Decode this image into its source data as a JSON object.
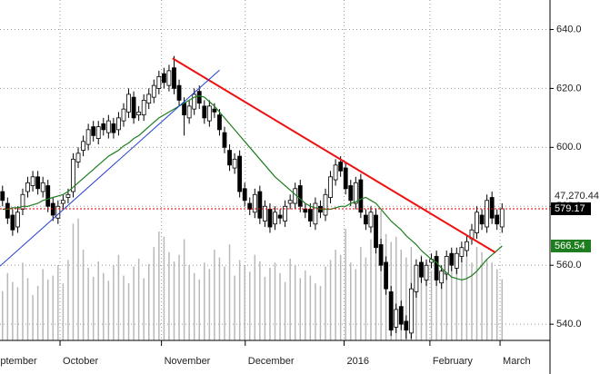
{
  "chart_data": {
    "type": "candlestick",
    "xlim": [
      -0.5,
      108.5
    ],
    "ylim": [
      534.5,
      650
    ],
    "grid": true,
    "yticks": [
      {
        "value": 540,
        "label": "540.0"
      },
      {
        "value": 560,
        "label": "560.0"
      },
      {
        "value": 580,
        "label": "580.0"
      },
      {
        "value": 600,
        "label": "600.0"
      },
      {
        "value": 620,
        "label": "620.0"
      },
      {
        "value": 640,
        "label": "640.0"
      }
    ],
    "xticks": [
      {
        "value": -3.4,
        "label": "September"
      },
      {
        "value": 11.4,
        "label": "October"
      },
      {
        "value": 31.5,
        "label": "November"
      },
      {
        "value": 48.1,
        "label": "December"
      },
      {
        "value": 67.7,
        "label": "2016"
      },
      {
        "value": 84.7,
        "label": "February"
      },
      {
        "value": 98.6,
        "label": "March"
      }
    ],
    "up_color": "#ffffff",
    "down_color": "#000000",
    "open": [
      585,
      581,
      577,
      573,
      579,
      585,
      587,
      590,
      585,
      587,
      581,
      576,
      581,
      583,
      585,
      595,
      599,
      601,
      607,
      603,
      608,
      605,
      608,
      606,
      609,
      612,
      617,
      611,
      611,
      615,
      617,
      620,
      625,
      621,
      627,
      621,
      615,
      610,
      613,
      619,
      614,
      609,
      613,
      611,
      605,
      599,
      593,
      597,
      586,
      581,
      578,
      585,
      575,
      579,
      574,
      577,
      575,
      581,
      581,
      587,
      579,
      579,
      574,
      580,
      577,
      583,
      589,
      595,
      593,
      587,
      581,
      589,
      577,
      573,
      577,
      567,
      561,
      551,
      539,
      546,
      541,
      537,
      551,
      561,
      555,
      561,
      563,
      554,
      557,
      564,
      559,
      563,
      565,
      569,
      571,
      577,
      573,
      583,
      577,
      573
    ],
    "high": [
      587,
      583,
      579,
      580,
      586,
      590,
      592,
      592,
      590,
      589,
      583,
      582,
      584,
      586,
      598,
      600,
      604,
      608,
      609,
      609,
      610,
      611,
      610,
      612,
      615,
      620,
      619,
      614,
      618,
      620,
      623,
      626,
      627,
      628,
      631,
      623,
      617,
      616,
      620,
      621,
      616,
      616,
      615,
      613,
      607,
      601,
      598,
      599,
      588,
      583,
      586,
      587,
      582,
      581,
      580,
      579,
      582,
      584,
      588,
      589,
      581,
      581,
      583,
      582,
      586,
      592,
      596,
      597,
      595,
      589,
      590,
      591,
      579,
      580,
      579,
      569,
      563,
      553,
      547,
      548,
      543,
      554,
      562,
      563,
      562,
      564,
      565,
      560,
      565,
      566,
      566,
      568,
      570,
      574,
      580,
      579,
      584,
      585,
      579,
      581
    ],
    "low": [
      580,
      574,
      570,
      571,
      577,
      583,
      585,
      584,
      583,
      578,
      575,
      574,
      579,
      581,
      583,
      593,
      597,
      599,
      602,
      601,
      604,
      603,
      603,
      604,
      607,
      610,
      608,
      609,
      609,
      613,
      615,
      618,
      620,
      619,
      618,
      614,
      604,
      608,
      611,
      613,
      608,
      607,
      610,
      604,
      598,
      592,
      591,
      583,
      580,
      577,
      576,
      574,
      573,
      571,
      572,
      574,
      573,
      579,
      579,
      578,
      576,
      573,
      572,
      576,
      575,
      581,
      587,
      590,
      584,
      580,
      579,
      576,
      572,
      571,
      564,
      558,
      550,
      536,
      537,
      538,
      535,
      535,
      549,
      554,
      553,
      559,
      553,
      552,
      555,
      558,
      557,
      561,
      563,
      567,
      569,
      572,
      571,
      574,
      572,
      571
    ],
    "close": [
      582,
      576,
      572,
      578,
      584,
      588,
      590,
      586,
      588,
      580,
      577,
      580,
      582,
      584,
      596,
      598,
      602,
      606,
      604,
      607,
      606,
      609,
      605,
      610,
      613,
      618,
      610,
      612,
      616,
      618,
      621,
      624,
      622,
      626,
      620,
      616,
      611,
      614,
      618,
      615,
      610,
      614,
      612,
      606,
      600,
      594,
      596,
      585,
      582,
      579,
      584,
      576,
      580,
      573,
      578,
      576,
      580,
      582,
      586,
      580,
      578,
      575,
      581,
      578,
      584,
      590,
      594,
      592,
      586,
      582,
      588,
      578,
      574,
      578,
      566,
      560,
      552,
      538,
      545,
      540,
      538,
      552,
      560,
      556,
      560,
      562,
      555,
      558,
      563,
      560,
      564,
      566,
      568,
      572,
      578,
      574,
      582,
      576,
      574,
      579.17
    ],
    "price_line_color": "#e00000",
    "ma": {
      "color": "#1e7d1e",
      "values": [
        579,
        579,
        579.5,
        579.5,
        580,
        580,
        580.5,
        581,
        582,
        582.5,
        583,
        583.5,
        584,
        585,
        586.5,
        588,
        589.5,
        591,
        592.5,
        594,
        595.5,
        597,
        598,
        599,
        600.5,
        601.5,
        603,
        604,
        605.5,
        607,
        608.5,
        610,
        611,
        612,
        613,
        614,
        615,
        616,
        617,
        617.5,
        617,
        615.5,
        614,
        612,
        610,
        608,
        606,
        604,
        602,
        600,
        598,
        596,
        594,
        592,
        590,
        588.5,
        587,
        585.5,
        584,
        582.5,
        581,
        580,
        579.5,
        579,
        579,
        579,
        579.5,
        580,
        580,
        581,
        581.5,
        582.5,
        583,
        582,
        581,
        579,
        577,
        575,
        573.5,
        572,
        570,
        568.5,
        567,
        565,
        563.5,
        562,
        561,
        559,
        557.5,
        556,
        555.5,
        555,
        555.5,
        556.5,
        558,
        560,
        562,
        563.5,
        565,
        566.54
      ]
    },
    "volume": {
      "color": "#b8b8b8",
      "values": [
        38000,
        52000,
        45000,
        41000,
        60000,
        48000,
        35000,
        42000,
        55000,
        47000,
        50000,
        58000,
        44000,
        62000,
        90000,
        94000,
        70000,
        56000,
        49000,
        61000,
        52000,
        46000,
        58000,
        66000,
        50000,
        44000,
        57000,
        63000,
        48000,
        59000,
        72000,
        84000,
        80000,
        68000,
        61000,
        66000,
        78000,
        58000,
        52000,
        47000,
        60000,
        55000,
        70000,
        64000,
        57000,
        74000,
        50000,
        62000,
        58000,
        53000,
        66000,
        61000,
        49000,
        56000,
        60000,
        52000,
        45000,
        63000,
        58000,
        48000,
        54000,
        50000,
        44000,
        42000,
        57000,
        62000,
        70000,
        66000,
        86000,
        60000,
        55000,
        72000,
        64000,
        78000,
        88000,
        100000,
        82000,
        76000,
        80000,
        70000,
        64000,
        72000,
        58000,
        66000,
        60000,
        54000,
        68000,
        56000,
        62000,
        70000,
        58000,
        64000,
        66000,
        60000,
        72000,
        68000,
        62000,
        60000,
        55000,
        47270.44
      ],
      "value_labels": [
        null,
        null,
        null,
        null,
        null,
        null,
        null,
        null,
        null,
        null,
        null,
        null,
        null,
        null,
        null,
        null,
        null,
        null,
        null,
        null,
        null,
        null,
        null,
        null,
        null,
        null,
        null,
        null,
        null,
        null,
        null,
        null,
        null,
        null,
        null,
        null,
        null,
        null,
        null,
        null,
        null,
        null,
        null,
        null,
        null,
        null,
        null,
        null,
        null,
        null,
        null,
        null,
        null,
        null,
        null,
        null,
        null,
        null,
        null,
        null,
        null,
        null,
        null,
        null,
        null,
        null,
        null,
        null,
        null,
        null,
        null,
        null,
        null,
        null,
        null,
        null,
        null,
        null,
        null,
        null,
        null,
        null,
        null,
        null,
        null,
        null,
        null,
        null,
        null,
        null,
        null,
        null,
        null,
        null,
        null,
        null,
        null,
        null,
        null,
        "47,270.44"
      ]
    },
    "trendlines": [
      {
        "color": "#ee1111",
        "x": [
          33.7,
          97.7
        ],
        "values": [
          630.2,
          564.3
        ]
      },
      {
        "color": "#1f3fd0",
        "x": [
          -0.5,
          43
        ],
        "values": [
          559.7,
          626.2
        ]
      }
    ]
  }
}
